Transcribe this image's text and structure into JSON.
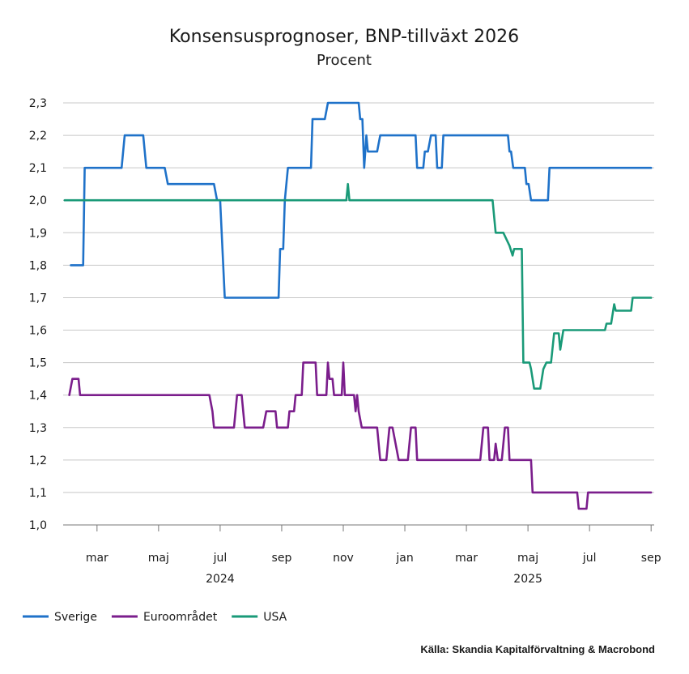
{
  "chart_data": {
    "type": "line",
    "title": "Konsensusprognoser, BNP-tillväxt 2026",
    "subtitle": "Procent",
    "ylim": [
      1.0,
      2.3
    ],
    "yticks": [
      {
        "value": 1.0,
        "label": "1,0"
      },
      {
        "value": 1.1,
        "label": "1,1"
      },
      {
        "value": 1.2,
        "label": "1,2"
      },
      {
        "value": 1.3,
        "label": "1,3"
      },
      {
        "value": 1.4,
        "label": "1,4"
      },
      {
        "value": 1.5,
        "label": "1,5"
      },
      {
        "value": 1.6,
        "label": "1,6"
      },
      {
        "value": 1.7,
        "label": "1,7"
      },
      {
        "value": 1.8,
        "label": "1,8"
      },
      {
        "value": 1.9,
        "label": "1,9"
      },
      {
        "value": 2.0,
        "label": "2,0"
      },
      {
        "value": 2.1,
        "label": "2,1"
      },
      {
        "value": 2.2,
        "label": "2,2"
      },
      {
        "value": 2.3,
        "label": "2,3"
      }
    ],
    "xlim": [
      0,
      19.2
    ],
    "xticks": [
      {
        "value": 1.1,
        "label": "mar"
      },
      {
        "value": 3.1,
        "label": "maj"
      },
      {
        "value": 5.1,
        "label": "jul"
      },
      {
        "value": 7.1,
        "label": "sep"
      },
      {
        "value": 9.1,
        "label": "nov"
      },
      {
        "value": 11.1,
        "label": "jan"
      },
      {
        "value": 13.1,
        "label": "mar"
      },
      {
        "value": 15.1,
        "label": "maj"
      },
      {
        "value": 17.1,
        "label": "jul"
      },
      {
        "value": 19.1,
        "label": "sep"
      }
    ],
    "year_labels": [
      {
        "value": 5.1,
        "label": "2024"
      },
      {
        "value": 15.1,
        "label": "2025"
      }
    ],
    "series": [
      {
        "name": "Sverige",
        "color": "#1f72c9",
        "points": [
          [
            0.25,
            1.8
          ],
          [
            0.65,
            1.8
          ],
          [
            0.7,
            2.1
          ],
          [
            1.9,
            2.1
          ],
          [
            2.0,
            2.2
          ],
          [
            2.6,
            2.2
          ],
          [
            2.7,
            2.1
          ],
          [
            3.3,
            2.1
          ],
          [
            3.4,
            2.05
          ],
          [
            4.9,
            2.05
          ],
          [
            5.0,
            2.0
          ],
          [
            5.1,
            2.0
          ],
          [
            5.25,
            1.7
          ],
          [
            7.0,
            1.7
          ],
          [
            7.05,
            1.85
          ],
          [
            7.15,
            1.85
          ],
          [
            7.2,
            2.0
          ],
          [
            7.3,
            2.1
          ],
          [
            8.05,
            2.1
          ],
          [
            8.1,
            2.25
          ],
          [
            8.5,
            2.25
          ],
          [
            8.6,
            2.3
          ],
          [
            9.6,
            2.3
          ],
          [
            9.65,
            2.25
          ],
          [
            9.72,
            2.25
          ],
          [
            9.78,
            2.1
          ],
          [
            9.85,
            2.2
          ],
          [
            9.9,
            2.15
          ],
          [
            10.2,
            2.15
          ],
          [
            10.3,
            2.2
          ],
          [
            11.45,
            2.2
          ],
          [
            11.5,
            2.1
          ],
          [
            11.7,
            2.1
          ],
          [
            11.75,
            2.15
          ],
          [
            11.85,
            2.15
          ],
          [
            11.95,
            2.2
          ],
          [
            12.1,
            2.2
          ],
          [
            12.15,
            2.1
          ],
          [
            12.3,
            2.1
          ],
          [
            12.35,
            2.2
          ],
          [
            14.45,
            2.2
          ],
          [
            14.5,
            2.15
          ],
          [
            14.55,
            2.15
          ],
          [
            14.62,
            2.1
          ],
          [
            15.0,
            2.1
          ],
          [
            15.05,
            2.05
          ],
          [
            15.12,
            2.05
          ],
          [
            15.2,
            2.0
          ],
          [
            15.75,
            2.0
          ],
          [
            15.8,
            2.1
          ],
          [
            19.1,
            2.1
          ]
        ]
      },
      {
        "name": "Euroområdet",
        "color": "#7b1e8c",
        "points": [
          [
            0.2,
            1.4
          ],
          [
            0.3,
            1.45
          ],
          [
            0.5,
            1.45
          ],
          [
            0.55,
            1.4
          ],
          [
            4.75,
            1.4
          ],
          [
            4.85,
            1.35
          ],
          [
            4.9,
            1.3
          ],
          [
            5.55,
            1.3
          ],
          [
            5.65,
            1.4
          ],
          [
            5.8,
            1.4
          ],
          [
            5.9,
            1.3
          ],
          [
            6.5,
            1.3
          ],
          [
            6.6,
            1.35
          ],
          [
            6.9,
            1.35
          ],
          [
            6.95,
            1.3
          ],
          [
            7.3,
            1.3
          ],
          [
            7.35,
            1.35
          ],
          [
            7.5,
            1.35
          ],
          [
            7.55,
            1.4
          ],
          [
            7.75,
            1.4
          ],
          [
            7.8,
            1.5
          ],
          [
            8.2,
            1.5
          ],
          [
            8.25,
            1.4
          ],
          [
            8.55,
            1.4
          ],
          [
            8.6,
            1.5
          ],
          [
            8.65,
            1.45
          ],
          [
            8.75,
            1.45
          ],
          [
            8.8,
            1.4
          ],
          [
            9.05,
            1.4
          ],
          [
            9.1,
            1.5
          ],
          [
            9.15,
            1.4
          ],
          [
            9.45,
            1.4
          ],
          [
            9.5,
            1.35
          ],
          [
            9.55,
            1.4
          ],
          [
            9.6,
            1.35
          ],
          [
            9.7,
            1.3
          ],
          [
            10.2,
            1.3
          ],
          [
            10.3,
            1.2
          ],
          [
            10.5,
            1.2
          ],
          [
            10.6,
            1.3
          ],
          [
            10.7,
            1.3
          ],
          [
            10.8,
            1.25
          ],
          [
            10.9,
            1.2
          ],
          [
            11.2,
            1.2
          ],
          [
            11.3,
            1.3
          ],
          [
            11.45,
            1.3
          ],
          [
            11.5,
            1.2
          ],
          [
            13.55,
            1.2
          ],
          [
            13.65,
            1.3
          ],
          [
            13.8,
            1.3
          ],
          [
            13.85,
            1.2
          ],
          [
            14.0,
            1.2
          ],
          [
            14.05,
            1.25
          ],
          [
            14.12,
            1.2
          ],
          [
            14.25,
            1.2
          ],
          [
            14.35,
            1.3
          ],
          [
            14.45,
            1.3
          ],
          [
            14.5,
            1.2
          ],
          [
            15.2,
            1.2
          ],
          [
            15.25,
            1.1
          ],
          [
            16.7,
            1.1
          ],
          [
            16.75,
            1.05
          ],
          [
            17.0,
            1.05
          ],
          [
            17.05,
            1.1
          ],
          [
            19.1,
            1.1
          ]
        ]
      },
      {
        "name": "USA",
        "color": "#1a9a78",
        "points": [
          [
            0.05,
            2.0
          ],
          [
            9.2,
            2.0
          ],
          [
            9.25,
            2.05
          ],
          [
            9.3,
            2.0
          ],
          [
            13.95,
            2.0
          ],
          [
            14.05,
            1.9
          ],
          [
            14.3,
            1.9
          ],
          [
            14.4,
            1.88
          ],
          [
            14.5,
            1.86
          ],
          [
            14.6,
            1.83
          ],
          [
            14.65,
            1.85
          ],
          [
            14.9,
            1.85
          ],
          [
            14.95,
            1.5
          ],
          [
            15.15,
            1.5
          ],
          [
            15.2,
            1.48
          ],
          [
            15.3,
            1.42
          ],
          [
            15.5,
            1.42
          ],
          [
            15.6,
            1.48
          ],
          [
            15.7,
            1.5
          ],
          [
            15.85,
            1.5
          ],
          [
            15.95,
            1.59
          ],
          [
            16.1,
            1.59
          ],
          [
            16.15,
            1.54
          ],
          [
            16.25,
            1.6
          ],
          [
            17.6,
            1.6
          ],
          [
            17.65,
            1.62
          ],
          [
            17.8,
            1.62
          ],
          [
            17.9,
            1.68
          ],
          [
            17.95,
            1.66
          ],
          [
            18.45,
            1.66
          ],
          [
            18.5,
            1.7
          ],
          [
            19.1,
            1.7
          ]
        ]
      }
    ],
    "legend_position": "bottom-left",
    "source": "Källa: Skandia Kapitalförvaltning & Macrobond"
  }
}
